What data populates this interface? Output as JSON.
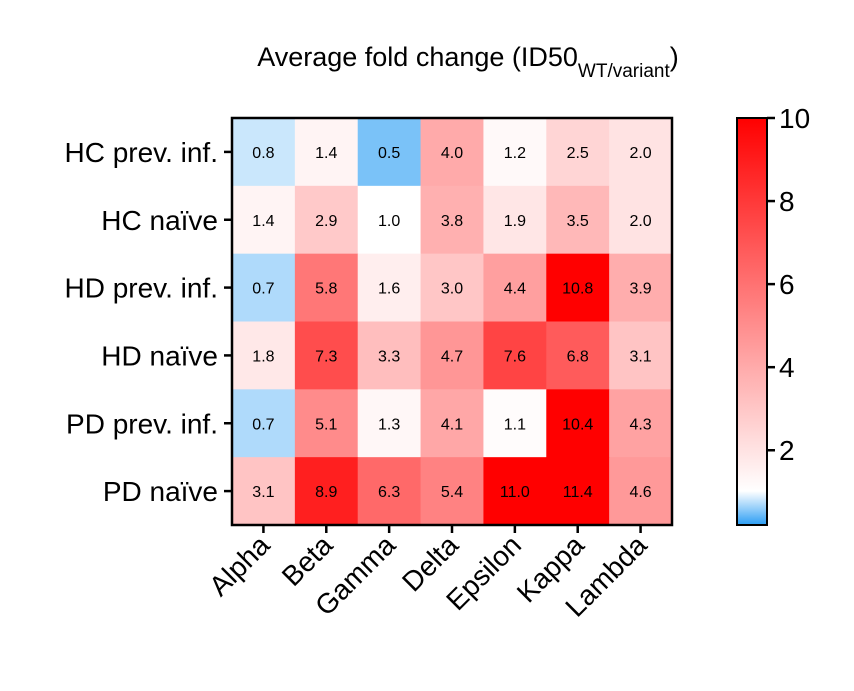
{
  "chart_data": {
    "type": "heatmap",
    "title": "Average fold change (ID50",
    "title_subscript": "WT/variant",
    "title_close": ")",
    "rows": [
      "HC prev. inf.",
      "HC naïve",
      "HD prev. inf.",
      "HD naïve",
      "PD prev. inf.",
      "PD naïve"
    ],
    "columns": [
      "Alpha",
      "Beta",
      "Gamma",
      "Delta",
      "Epsilon",
      "Kappa",
      "Lambda"
    ],
    "values": [
      [
        0.8,
        1.4,
        0.5,
        4.0,
        1.2,
        2.5,
        2.0
      ],
      [
        1.4,
        2.9,
        1.0,
        3.8,
        1.9,
        3.5,
        2.0
      ],
      [
        0.7,
        5.8,
        1.6,
        3.0,
        4.4,
        10.8,
        3.9
      ],
      [
        1.8,
        7.3,
        3.3,
        4.7,
        7.6,
        6.8,
        3.1
      ],
      [
        0.7,
        5.1,
        1.3,
        4.1,
        1.1,
        10.4,
        4.3
      ],
      [
        3.1,
        8.9,
        6.3,
        5.4,
        11.0,
        11.4,
        4.6
      ]
    ],
    "value_labels": [
      [
        "0.8",
        "1.4",
        "0.5",
        "4.0",
        "1.2",
        "2.5",
        "2.0"
      ],
      [
        "1.4",
        "2.9",
        "1.0",
        "3.8",
        "1.9",
        "3.5",
        "2.0"
      ],
      [
        "0.7",
        "5.8",
        "1.6",
        "3.0",
        "4.4",
        "10.8",
        "3.9"
      ],
      [
        "1.8",
        "7.3",
        "3.3",
        "4.7",
        "7.6",
        "6.8",
        "3.1"
      ],
      [
        "0.7",
        "5.1",
        "1.3",
        "4.1",
        "1.1",
        "10.4",
        "4.3"
      ],
      [
        "3.1",
        "8.9",
        "6.3",
        "5.4",
        "11.0",
        "11.4",
        "4.6"
      ]
    ],
    "colorbar": {
      "min": 0.2,
      "mid": 1,
      "max": 10,
      "ticks": [
        "2",
        "4",
        "6",
        "8",
        "10"
      ],
      "low_color": "#2a9df4",
      "mid_color": "#ffffff",
      "high_color": "#ff0000"
    },
    "xlabel": "",
    "ylabel": "",
    "legend": "right"
  }
}
